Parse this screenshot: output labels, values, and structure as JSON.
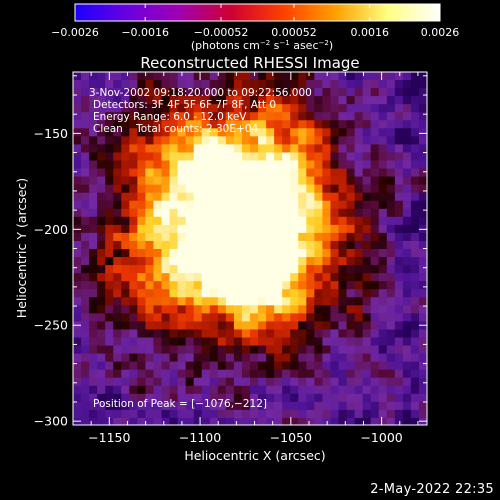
{
  "chart_data": {
    "type": "heatmap",
    "title": "Reconstructed RHESSI Image",
    "xlabel": "Heliocentric X (arcsec)",
    "ylabel": "Heliocentric Y (arcsec)",
    "xlim": [
      -1170,
      -975
    ],
    "ylim": [
      -302,
      -118
    ],
    "x_ticks": [
      -1150,
      -1100,
      -1050,
      -1000
    ],
    "x_tick_labels": [
      "−1150",
      "−1100",
      "−1050",
      "−1000"
    ],
    "y_ticks": [
      -150,
      -200,
      -250,
      -300
    ],
    "y_tick_labels": [
      "−150",
      "−200",
      "−250",
      "−300"
    ],
    "colorbar": {
      "range": [
        -0.0026,
        0.0026
      ],
      "tick_values": [
        -0.0026,
        -0.0016,
        -0.00052,
        0.00052,
        0.0016,
        0.0026
      ],
      "tick_labels": [
        "−0.0026",
        "−0.0016",
        "−0.00052",
        "0.00052",
        "0.0016",
        "0.0026"
      ],
      "unit_label": "(photons cm",
      "unit_exp1": "−2",
      "unit_mid": " s",
      "unit_exp2": "−1",
      "unit_end": " asec",
      "unit_exp3": "−2",
      "unit_close": ")",
      "colors": [
        "#1a00ff",
        "#6a00e0",
        "#a000b0",
        "#d00030",
        "#ff4000",
        "#ffa000",
        "#ffff80",
        "#ffffff"
      ]
    },
    "info_lines": [
      "3-Nov-2002 09:18:20.000 to 09:22:56.000",
      "Detectors: 3F 4F 5F 6F 7F 8F, Att 0",
      "Energy Range: 6.0 - 12.0 keV",
      "Clean    Total counts: 2.30E+04"
    ],
    "peak_label": "Position of Peak = [−1076,−212]",
    "peak": [
      -1076,
      -212
    ]
  },
  "timestamp": "2-May-2022 22:35"
}
